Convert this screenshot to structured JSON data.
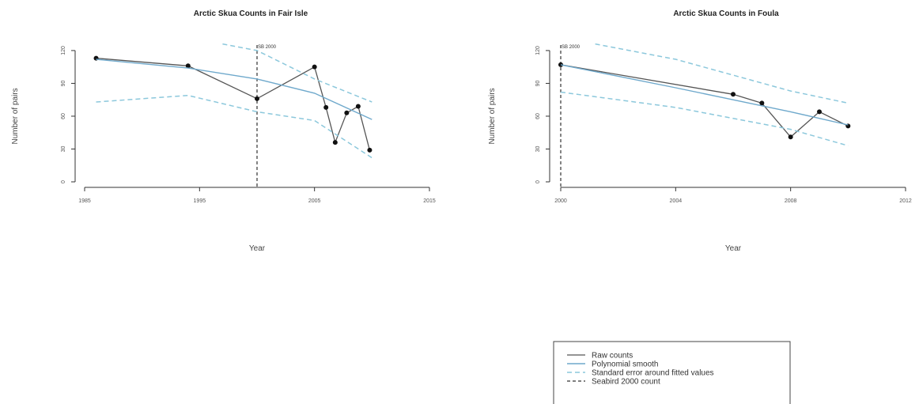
{
  "colors": {
    "raw": "#555555",
    "smooth": "#6fa9cc",
    "se": "#8cc8dc",
    "seabird": "#333333"
  },
  "chart_data": [
    {
      "type": "line",
      "title": "Arctic Skua Counts in Fair Isle",
      "xlabel": "Year",
      "ylabel": "Number of pairs",
      "xlim": [
        1985,
        2015
      ],
      "ylim": [
        0,
        125
      ],
      "xticks": [
        "1985",
        "1995",
        "2005",
        "2015"
      ],
      "yticks": [
        "0",
        "30",
        "60",
        "90",
        "120"
      ],
      "annotation": "SB 2000",
      "seabird_x": 2000,
      "series": [
        {
          "name": "Raw counts",
          "style": "raw",
          "x": [
            1986,
            1994,
            2000,
            2005,
            2006,
            2006.8,
            2007.8,
            2008.8,
            2009.8
          ],
          "y": [
            113,
            106,
            76,
            105,
            68,
            36,
            63,
            69,
            29
          ]
        },
        {
          "name": "Polynomial smooth",
          "style": "smooth",
          "x": [
            1986,
            1994,
            2000,
            2005,
            2010
          ],
          "y": [
            112,
            104,
            94,
            81,
            57
          ]
        },
        {
          "name": "Standard error around fitted values",
          "style": "se",
          "x": [
            1986,
            1994,
            2000,
            2005,
            2010
          ],
          "y": [
            73,
            79,
            64,
            56,
            22
          ]
        },
        {
          "name": "Standard error around fitted values",
          "style": "se",
          "x": [
            1997,
            2000,
            2005,
            2010
          ],
          "y": [
            126,
            120,
            94,
            73
          ]
        }
      ]
    },
    {
      "type": "line",
      "title": "Arctic Skua Counts in Foula",
      "xlabel": "Year",
      "ylabel": "Number of pairs",
      "xlim": [
        2000,
        2012
      ],
      "ylim": [
        0,
        125
      ],
      "xticks": [
        "2000",
        "2004",
        "2008",
        "2012"
      ],
      "yticks": [
        "0",
        "30",
        "60",
        "90",
        "120"
      ],
      "annotation": "SB 2000",
      "seabird_x": 2000,
      "series": [
        {
          "name": "Raw counts",
          "style": "raw",
          "x": [
            2000,
            2006,
            2007,
            2008,
            2009,
            2010
          ],
          "y": [
            107,
            80,
            72,
            41,
            64,
            51
          ]
        },
        {
          "name": "Polynomial smooth",
          "style": "smooth",
          "x": [
            2000,
            2004,
            2008,
            2010
          ],
          "y": [
            107,
            86,
            64,
            52
          ]
        },
        {
          "name": "Standard error around fitted values",
          "style": "se",
          "x": [
            2000,
            2004,
            2008,
            2010
          ],
          "y": [
            82,
            68,
            48,
            33
          ]
        },
        {
          "name": "Standard error around fitted values",
          "style": "se",
          "x": [
            2001.2,
            2004,
            2008,
            2010
          ],
          "y": [
            126,
            112,
            83,
            72
          ]
        }
      ]
    }
  ],
  "legend": {
    "items": [
      {
        "label": "Raw counts",
        "style": "raw"
      },
      {
        "label": "Polynomial smooth",
        "style": "smooth"
      },
      {
        "label": "Standard error around fitted values",
        "style": "se"
      },
      {
        "label": "Seabird 2000 count",
        "style": "seabird"
      }
    ]
  }
}
